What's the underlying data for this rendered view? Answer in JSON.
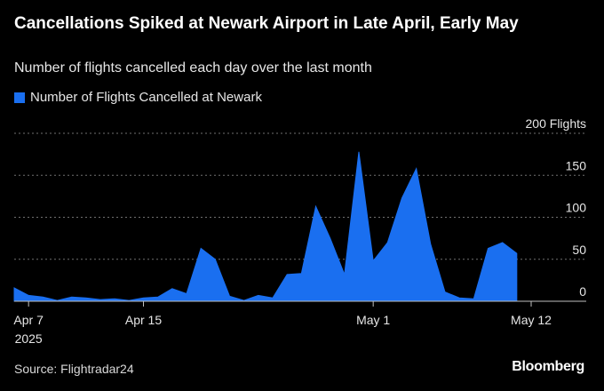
{
  "title": "Cancellations Spiked at Newark Airport in Late April, Early May",
  "subtitle": "Number of flights cancelled each day over the last month",
  "source": "Source: Flightradar24",
  "brand": "Bloomberg",
  "colors": {
    "series": "#1a6ff0",
    "background": "#000000",
    "grid": "#8c8c8c"
  },
  "chart_data": {
    "type": "area",
    "title": "Cancellations Spiked at Newark Airport in Late April, Early May",
    "subtitle": "Number of flights cancelled each day over the last month",
    "x": [
      "2025-04-06",
      "2025-04-07",
      "2025-04-08",
      "2025-04-09",
      "2025-04-10",
      "2025-04-11",
      "2025-04-12",
      "2025-04-13",
      "2025-04-14",
      "2025-04-15",
      "2025-04-16",
      "2025-04-17",
      "2025-04-18",
      "2025-04-19",
      "2025-04-20",
      "2025-04-21",
      "2025-04-22",
      "2025-04-23",
      "2025-04-24",
      "2025-04-25",
      "2025-04-26",
      "2025-04-27",
      "2025-04-28",
      "2025-04-29",
      "2025-04-30",
      "2025-05-01",
      "2025-05-02",
      "2025-05-03",
      "2025-05-04",
      "2025-05-05",
      "2025-05-06",
      "2025-05-07",
      "2025-05-08",
      "2025-05-09",
      "2025-05-10",
      "2025-05-11",
      "2025-05-12"
    ],
    "series": [
      {
        "name": "Number of Flights Cancelled at Newark",
        "values": [
          16,
          7,
          5,
          1,
          5,
          4,
          2,
          3,
          1,
          4,
          5,
          15,
          9,
          63,
          50,
          6,
          1,
          7,
          4,
          32,
          33,
          113,
          75,
          32,
          178,
          48,
          70,
          123,
          158,
          68,
          11,
          4,
          3,
          63,
          70,
          57,
          null
        ]
      }
    ],
    "ylim": [
      0,
      200
    ],
    "yticks": [
      0,
      50,
      100,
      150,
      200
    ],
    "ytick_labels": [
      "0",
      "50",
      "100",
      "150",
      "200 Flights"
    ],
    "xticks": [
      {
        "date": "2025-04-07",
        "label": "Apr 7",
        "sublabel": "2025"
      },
      {
        "date": "2025-04-15",
        "label": "Apr 15",
        "sublabel": ""
      },
      {
        "date": "2025-05-01",
        "label": "May 1",
        "sublabel": ""
      },
      {
        "date": "2025-05-12",
        "label": "May 12",
        "sublabel": ""
      }
    ],
    "grid": true,
    "legend": "top-left",
    "xlabel": "",
    "ylabel": ""
  }
}
